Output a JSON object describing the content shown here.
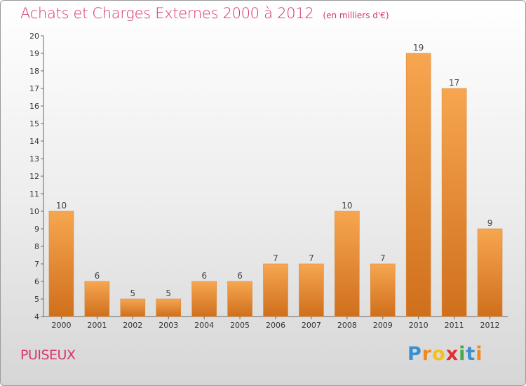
{
  "chart_data": {
    "type": "bar",
    "title": "Achats et Charges Externes 2000 à 2012",
    "subtitle": "(en milliers d'€)",
    "categories": [
      "2000",
      "2001",
      "2002",
      "2003",
      "2004",
      "2005",
      "2006",
      "2007",
      "2008",
      "2009",
      "2010",
      "2011",
      "2012"
    ],
    "values": [
      10,
      6,
      5,
      5,
      6,
      6,
      7,
      7,
      10,
      7,
      19,
      17,
      9
    ],
    "ylim": [
      4,
      20
    ],
    "yticks": [
      4,
      5,
      6,
      7,
      8,
      9,
      10,
      11,
      12,
      13,
      14,
      15,
      16,
      17,
      18,
      19,
      20
    ],
    "grid": false,
    "bar_color_top": "#f7a650",
    "bar_color_bottom": "#cf6f1c",
    "data_labels": true
  },
  "footer": {
    "town": "PUISEUX",
    "logo_letters": [
      "P",
      "r",
      "o",
      "x",
      "i",
      "t",
      "i"
    ],
    "logo_colors": [
      "#3b8fd0",
      "#f08a1c",
      "#f2c11b",
      "#e2302d",
      "#48a84a",
      "#3b8fd0",
      "#f08a1c"
    ]
  }
}
